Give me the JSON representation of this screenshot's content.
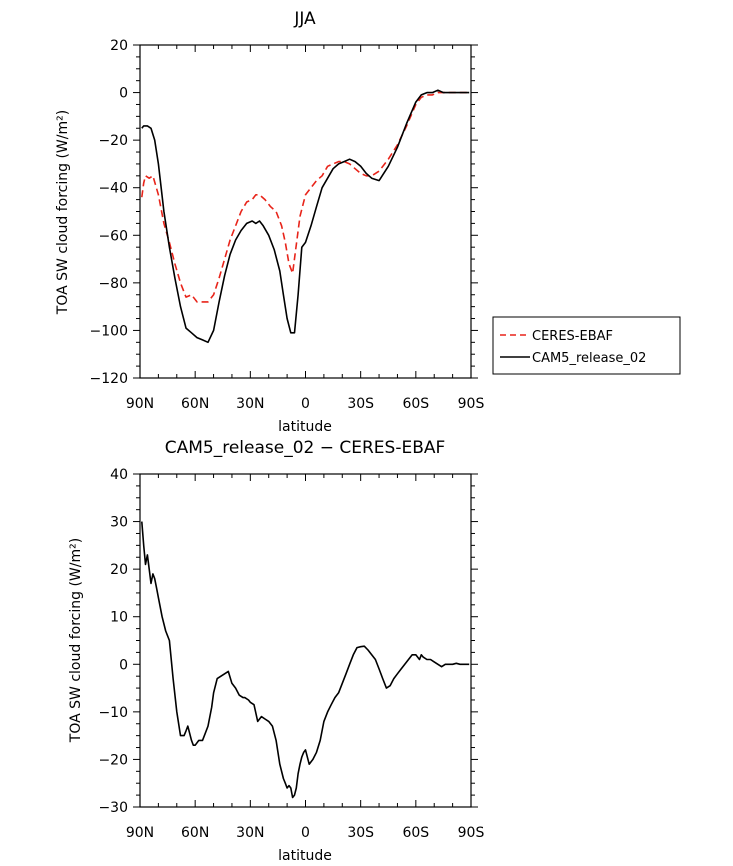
{
  "chart_data": [
    {
      "type": "line",
      "title": "JJA",
      "xlabel": "latitude",
      "ylabel": "TOA SW cloud forcing (W/m²)",
      "xlim": [
        90,
        -90
      ],
      "ylim": [
        -120,
        20
      ],
      "x_ticks": [
        90,
        60,
        30,
        0,
        -30,
        -60,
        -90
      ],
      "x_tick_labels": [
        "90N",
        "60N",
        "30N",
        "0",
        "30S",
        "60S",
        "90S"
      ],
      "y_ticks": [
        20,
        0,
        -20,
        -40,
        -60,
        -80,
        -100,
        -120
      ],
      "y_tick_labels": [
        "20",
        "0",
        "−20",
        "−40",
        "−60",
        "−80",
        "−100",
        "−120"
      ],
      "legend": {
        "position": "right",
        "entries": [
          "CERES-EBAF",
          "CAM5_release_02"
        ]
      },
      "series": [
        {
          "name": "CERES-EBAF",
          "color": "#e8241a",
          "dash": "dashed",
          "x": [
            89,
            88,
            87,
            85,
            83,
            80,
            77,
            74,
            71,
            68,
            65,
            62,
            59,
            56,
            53,
            50,
            47,
            44,
            41,
            38,
            35,
            32,
            29,
            27,
            25,
            22,
            19,
            16,
            13,
            11,
            9,
            7,
            5,
            3,
            0,
            -3,
            -6,
            -9,
            -12,
            -15,
            -18,
            -21,
            -24,
            -27,
            -30,
            -33,
            -36,
            -40,
            -45,
            -50,
            -55,
            -60,
            -63,
            -66,
            -69,
            -72,
            -75,
            -80,
            -85,
            -89
          ],
          "values": [
            -44,
            -38,
            -35,
            -36,
            -35,
            -43,
            -55,
            -63,
            -72,
            -80,
            -86,
            -85,
            -88,
            -88,
            -88,
            -85,
            -78,
            -70,
            -62,
            -56,
            -50,
            -46,
            -45,
            -43,
            -43,
            -45,
            -48,
            -50,
            -56,
            -63,
            -72,
            -76,
            -64,
            -52,
            -43,
            -40,
            -37,
            -35,
            -31,
            -30,
            -29,
            -29,
            -30,
            -32,
            -34,
            -35,
            -35,
            -33,
            -28,
            -22,
            -14,
            -5,
            -2,
            -1,
            -1,
            0,
            0,
            0,
            0,
            0
          ]
        },
        {
          "name": "CAM5_release_02",
          "color": "#000000",
          "dash": "solid",
          "x": [
            89,
            88,
            86,
            84,
            82,
            80,
            77,
            74,
            71,
            68,
            65,
            62,
            59,
            56,
            53,
            50,
            47,
            44,
            41,
            38,
            35,
            32,
            29,
            27,
            25,
            23,
            20,
            17,
            14,
            12,
            10,
            8,
            6,
            4,
            2,
            0,
            -3,
            -6,
            -9,
            -12,
            -15,
            -18,
            -21,
            -24,
            -27,
            -30,
            -33,
            -36,
            -40,
            -45,
            -50,
            -55,
            -60,
            -63,
            -66,
            -69,
            -72,
            -75,
            -80,
            -85,
            -89
          ],
          "values": [
            -15,
            -14,
            -14,
            -15,
            -20,
            -30,
            -50,
            -65,
            -78,
            -90,
            -99,
            -101,
            -103,
            -104,
            -105,
            -100,
            -88,
            -77,
            -68,
            -62,
            -58,
            -55,
            -54,
            -55,
            -54,
            -56,
            -60,
            -66,
            -75,
            -85,
            -95,
            -101,
            -101,
            -85,
            -65,
            -63,
            -56,
            -48,
            -40,
            -36,
            -32,
            -30,
            -29,
            -28,
            -29,
            -31,
            -34,
            -36,
            -37,
            -31,
            -23,
            -13,
            -4,
            -1,
            0,
            0,
            1,
            0,
            0,
            0,
            0
          ]
        }
      ]
    },
    {
      "type": "line",
      "title": "CAM5_release_02 − CERES-EBAF",
      "xlabel": "latitude",
      "ylabel": "TOA SW cloud forcing (W/m²)",
      "xlim": [
        90,
        -90
      ],
      "ylim": [
        -30,
        40
      ],
      "x_ticks": [
        90,
        60,
        30,
        0,
        -30,
        -60,
        -90
      ],
      "x_tick_labels": [
        "90N",
        "60N",
        "30N",
        "0",
        "30S",
        "60S",
        "90S"
      ],
      "y_ticks": [
        40,
        30,
        20,
        10,
        0,
        -10,
        -20,
        -30
      ],
      "y_tick_labels": [
        "40",
        "30",
        "20",
        "10",
        "0",
        "−10",
        "−20",
        "−30"
      ],
      "series": [
        {
          "name": "CAM5_release_02 − CERES-EBAF",
          "color": "#000000",
          "dash": "solid",
          "x": [
            89,
            88,
            87,
            86,
            85,
            84,
            83,
            82,
            81,
            80,
            78,
            76,
            74,
            72,
            70,
            68,
            66,
            65,
            64,
            62,
            61,
            60,
            58,
            56,
            55,
            53,
            51,
            50,
            48,
            46,
            44,
            42,
            40,
            38,
            36,
            34,
            33,
            31,
            30,
            28,
            26,
            24,
            22,
            20,
            18,
            16,
            14,
            12,
            11,
            10,
            9,
            8,
            7,
            6,
            5,
            4,
            3,
            2,
            1,
            0,
            -2,
            -4,
            -6,
            -8,
            -10,
            -12,
            -14,
            -16,
            -18,
            -20,
            -22,
            -24,
            -26,
            -28,
            -30,
            -32,
            -34,
            -36,
            -38,
            -40,
            -42,
            -44,
            -46,
            -48,
            -50,
            -52,
            -54,
            -56,
            -58,
            -60,
            -62,
            -63,
            -64,
            -66,
            -68,
            -70,
            -72,
            -74,
            -76,
            -78,
            -80,
            -82,
            -84,
            -86,
            -89
          ],
          "values": [
            30,
            25,
            21,
            23,
            20,
            17,
            19,
            18,
            16,
            14,
            10,
            7,
            5,
            -3,
            -10,
            -15,
            -15,
            -14,
            -13,
            -16,
            -17,
            -17,
            -16,
            -16,
            -15,
            -13,
            -9,
            -6,
            -3,
            -2.5,
            -2,
            -1.5,
            -4,
            -5,
            -6.5,
            -7,
            -7,
            -7.5,
            -8,
            -8.5,
            -12,
            -11,
            -11.5,
            -12,
            -13,
            -16,
            -21,
            -24,
            -25,
            -26,
            -25.5,
            -26,
            -28,
            -27.5,
            -26,
            -23,
            -21,
            -19.5,
            -18.5,
            -18,
            -21,
            -20,
            -18.5,
            -16,
            -12,
            -10,
            -8.5,
            -7,
            -6,
            -4,
            -2,
            0,
            2,
            3.5,
            3.7,
            3.8,
            3,
            2,
            1,
            -1,
            -3,
            -5,
            -4.5,
            -3,
            -2,
            -1,
            0,
            1,
            2,
            2,
            1,
            2,
            1.5,
            1,
            1,
            0.5,
            0,
            -0.5,
            0,
            0,
            0,
            0.2,
            0,
            0,
            0
          ]
        }
      ]
    }
  ]
}
